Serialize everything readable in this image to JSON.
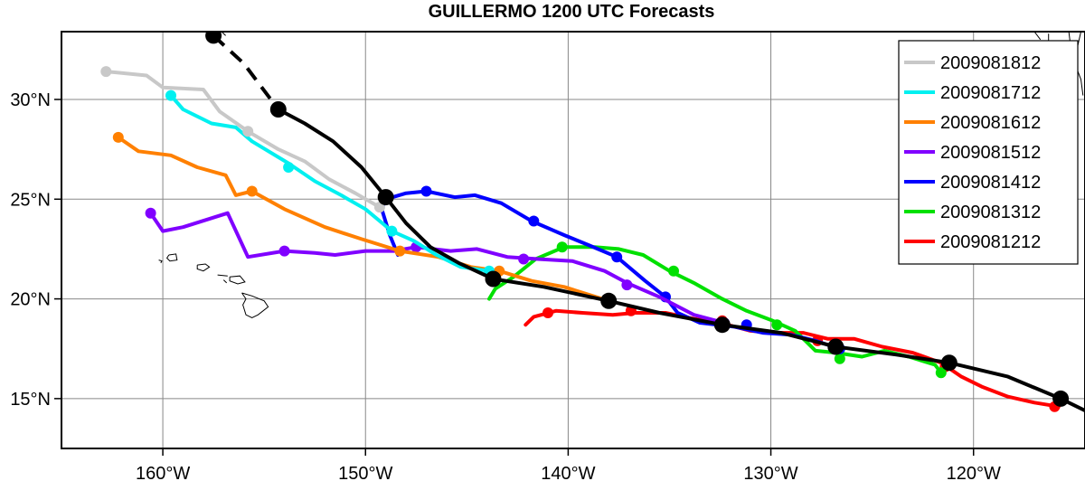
{
  "chart_data": {
    "type": "line",
    "title": "GUILLERMO 1200 UTC Forecasts",
    "x_ticks": [
      {
        "value": -160,
        "label": "160°W"
      },
      {
        "value": -150,
        "label": "150°W"
      },
      {
        "value": -140,
        "label": "140°W"
      },
      {
        "value": -130,
        "label": "130°W"
      },
      {
        "value": -120,
        "label": "120°W"
      }
    ],
    "y_ticks": [
      {
        "value": 15,
        "label": "15°N"
      },
      {
        "value": 20,
        "label": "20°N"
      },
      {
        "value": 25,
        "label": "25°N"
      },
      {
        "value": 30,
        "label": "30°N"
      }
    ],
    "xlim": [
      -165,
      -114.5
    ],
    "ylim": [
      12.5,
      33.4
    ],
    "grid": true,
    "legend_position": "top-right",
    "best_track": {
      "color": "#000000",
      "dashed_points": [
        [
          -157.5,
          33.2
        ],
        [
          -156.0,
          31.8
        ],
        [
          -154.3,
          29.5
        ]
      ],
      "points": [
        [
          -154.3,
          29.5
        ],
        [
          -153.0,
          28.8
        ],
        [
          -151.6,
          27.9
        ],
        [
          -150.2,
          26.6
        ],
        [
          -149.0,
          25.1
        ],
        [
          -148.0,
          23.8
        ],
        [
          -146.8,
          22.6
        ],
        [
          -145.4,
          21.8
        ],
        [
          -143.7,
          21.0
        ],
        [
          -141.2,
          20.6
        ],
        [
          -138.0,
          19.9
        ],
        [
          -135.5,
          19.3
        ],
        [
          -132.4,
          18.7
        ],
        [
          -129.5,
          18.3
        ],
        [
          -126.8,
          17.6
        ],
        [
          -123.8,
          17.2
        ],
        [
          -121.2,
          16.8
        ],
        [
          -118.3,
          16.1
        ],
        [
          -115.7,
          15.0
        ],
        [
          -114.5,
          14.4
        ]
      ],
      "markers": [
        [
          -157.5,
          33.2
        ],
        [
          -154.3,
          29.5
        ],
        [
          -149.0,
          25.1
        ],
        [
          -143.7,
          21.0
        ],
        [
          -138.0,
          19.9
        ],
        [
          -132.4,
          18.7
        ],
        [
          -126.8,
          17.6
        ],
        [
          -121.2,
          16.8
        ],
        [
          -115.7,
          15.0
        ]
      ]
    },
    "series": [
      {
        "name": "2009081812",
        "color": "#c8c8c8",
        "points": [
          [
            -162.8,
            31.4
          ],
          [
            -160.8,
            31.2
          ],
          [
            -160.0,
            30.6
          ],
          [
            -158.0,
            30.5
          ],
          [
            -157.2,
            29.4
          ],
          [
            -155.8,
            28.4
          ],
          [
            -154.3,
            27.5
          ],
          [
            -153.0,
            26.9
          ],
          [
            -151.8,
            26.0
          ],
          [
            -150.5,
            25.3
          ],
          [
            -149.3,
            24.6
          ]
        ],
        "markers": [
          [
            -162.8,
            31.4
          ],
          [
            -155.8,
            28.4
          ],
          [
            -149.3,
            24.6
          ]
        ]
      },
      {
        "name": "2009081712",
        "color": "#00f0f0",
        "points": [
          [
            -159.6,
            30.2
          ],
          [
            -159.0,
            29.5
          ],
          [
            -157.6,
            28.8
          ],
          [
            -156.4,
            28.6
          ],
          [
            -155.6,
            27.9
          ],
          [
            -153.8,
            26.8
          ],
          [
            -152.5,
            25.9
          ],
          [
            -151.2,
            25.2
          ],
          [
            -150.0,
            24.5
          ],
          [
            -148.7,
            23.4
          ],
          [
            -147.6,
            22.9
          ],
          [
            -146.5,
            22.2
          ],
          [
            -145.3,
            21.6
          ],
          [
            -143.9,
            21.4
          ]
        ],
        "markers": [
          [
            -159.6,
            30.2
          ],
          [
            -153.8,
            26.6
          ],
          [
            -148.7,
            23.4
          ],
          [
            -143.9,
            21.4
          ]
        ]
      },
      {
        "name": "2009081612",
        "color": "#ff8000",
        "points": [
          [
            -162.2,
            28.1
          ],
          [
            -161.2,
            27.4
          ],
          [
            -159.6,
            27.2
          ],
          [
            -158.3,
            26.6
          ],
          [
            -156.9,
            26.2
          ],
          [
            -156.4,
            25.2
          ],
          [
            -155.6,
            25.4
          ],
          [
            -154.0,
            24.5
          ],
          [
            -152.0,
            23.6
          ],
          [
            -150.2,
            23.0
          ],
          [
            -148.3,
            22.4
          ],
          [
            -146.4,
            22.1
          ],
          [
            -144.8,
            21.6
          ],
          [
            -143.4,
            21.4
          ],
          [
            -141.8,
            20.9
          ],
          [
            -140.2,
            20.6
          ],
          [
            -138.0,
            19.9
          ]
        ],
        "markers": [
          [
            -162.2,
            28.1
          ],
          [
            -155.6,
            25.4
          ],
          [
            -148.3,
            22.4
          ],
          [
            -143.4,
            21.4
          ],
          [
            -138.0,
            19.9
          ]
        ]
      },
      {
        "name": "2009081512",
        "color": "#8000ff",
        "points": [
          [
            -160.6,
            24.3
          ],
          [
            -160.0,
            23.4
          ],
          [
            -159.0,
            23.6
          ],
          [
            -156.8,
            24.3
          ],
          [
            -155.8,
            22.1
          ],
          [
            -154.0,
            22.4
          ],
          [
            -152.5,
            22.3
          ],
          [
            -151.5,
            22.2
          ],
          [
            -150.0,
            22.4
          ],
          [
            -148.6,
            22.4
          ],
          [
            -147.5,
            22.6
          ],
          [
            -145.8,
            22.4
          ],
          [
            -144.5,
            22.5
          ],
          [
            -143.0,
            22.1
          ],
          [
            -141.5,
            22.0
          ],
          [
            -139.8,
            21.9
          ],
          [
            -138.2,
            21.4
          ],
          [
            -137.1,
            20.8
          ],
          [
            -135.5,
            20.1
          ],
          [
            -133.8,
            19.2
          ],
          [
            -132.3,
            18.8
          ]
        ],
        "markers": [
          [
            -160.6,
            24.3
          ],
          [
            -154.0,
            22.4
          ],
          [
            -147.5,
            22.6
          ],
          [
            -142.2,
            22.0
          ],
          [
            -137.1,
            20.7
          ],
          [
            -132.3,
            18.8
          ]
        ]
      },
      {
        "name": "2009081412",
        "color": "#0000ff",
        "points": [
          [
            -148.4,
            22.2
          ],
          [
            -148.8,
            23.2
          ],
          [
            -149.2,
            24.5
          ],
          [
            -149.0,
            25.0
          ],
          [
            -148.0,
            25.3
          ],
          [
            -147.0,
            25.4
          ],
          [
            -145.6,
            25.1
          ],
          [
            -144.6,
            25.2
          ],
          [
            -143.3,
            24.8
          ],
          [
            -141.8,
            23.9
          ],
          [
            -140.2,
            23.2
          ],
          [
            -139.0,
            22.7
          ],
          [
            -137.6,
            22.1
          ],
          [
            -136.2,
            20.9
          ],
          [
            -135.2,
            20.1
          ],
          [
            -134.6,
            19.3
          ],
          [
            -133.5,
            18.8
          ],
          [
            -131.8,
            18.6
          ],
          [
            -130.4,
            18.3
          ],
          [
            -129.0,
            18.2
          ],
          [
            -127.8,
            17.9
          ],
          [
            -126.6,
            17.5
          ]
        ],
        "markers": [
          [
            -147.0,
            25.4
          ],
          [
            -141.7,
            23.9
          ],
          [
            -137.6,
            22.1
          ],
          [
            -135.2,
            20.1
          ],
          [
            -131.2,
            18.7
          ],
          [
            -126.6,
            17.5
          ]
        ]
      },
      {
        "name": "2009081312",
        "color": "#00e000",
        "points": [
          [
            -143.9,
            20.0
          ],
          [
            -143.6,
            20.5
          ],
          [
            -142.7,
            21.1
          ],
          [
            -141.6,
            22.0
          ],
          [
            -140.2,
            22.6
          ],
          [
            -138.7,
            22.6
          ],
          [
            -137.5,
            22.5
          ],
          [
            -136.3,
            22.2
          ],
          [
            -135.0,
            21.4
          ],
          [
            -133.8,
            20.8
          ],
          [
            -132.4,
            20.0
          ],
          [
            -131.2,
            19.4
          ],
          [
            -129.9,
            18.9
          ],
          [
            -128.8,
            18.4
          ],
          [
            -127.8,
            17.4
          ],
          [
            -126.8,
            17.3
          ],
          [
            -125.5,
            17.1
          ],
          [
            -124.4,
            17.4
          ],
          [
            -123.2,
            17.1
          ],
          [
            -121.9,
            16.7
          ],
          [
            -121.6,
            16.3
          ]
        ],
        "markers": [
          [
            -140.3,
            22.6
          ],
          [
            -134.8,
            21.4
          ],
          [
            -129.7,
            18.7
          ],
          [
            -126.6,
            17.0
          ],
          [
            -121.6,
            16.3
          ]
        ]
      },
      {
        "name": "2009081212",
        "color": "#ff0000",
        "points": [
          [
            -142.1,
            18.7
          ],
          [
            -141.7,
            19.1
          ],
          [
            -140.6,
            19.4
          ],
          [
            -139.3,
            19.3
          ],
          [
            -137.8,
            19.2
          ],
          [
            -136.7,
            19.3
          ],
          [
            -135.2,
            19.3
          ],
          [
            -133.8,
            19.0
          ],
          [
            -132.5,
            18.8
          ],
          [
            -131.0,
            18.4
          ],
          [
            -129.8,
            18.3
          ],
          [
            -128.4,
            18.3
          ],
          [
            -127.2,
            18.0
          ],
          [
            -125.9,
            18.0
          ],
          [
            -124.5,
            17.6
          ],
          [
            -123.0,
            17.3
          ],
          [
            -121.6,
            16.8
          ],
          [
            -120.6,
            16.1
          ],
          [
            -119.6,
            15.6
          ],
          [
            -118.3,
            15.1
          ],
          [
            -117.0,
            14.8
          ],
          [
            -115.8,
            14.6
          ]
        ],
        "markers": [
          [
            -141.0,
            19.3
          ],
          [
            -136.9,
            19.4
          ],
          [
            -132.4,
            18.9
          ],
          [
            -127.7,
            17.9
          ],
          [
            -121.4,
            16.6
          ],
          [
            -116.0,
            14.6
          ]
        ]
      }
    ],
    "coastlines": [
      [
        [
          -158.3,
          21.7
        ],
        [
          -157.9,
          21.75
        ],
        [
          -157.7,
          21.6
        ],
        [
          -158.0,
          21.4
        ],
        [
          -158.3,
          21.5
        ],
        [
          -158.3,
          21.7
        ]
      ],
      [
        [
          -156.7,
          21.1
        ],
        [
          -156.2,
          21.15
        ],
        [
          -155.95,
          20.85
        ],
        [
          -156.3,
          20.75
        ],
        [
          -156.7,
          20.9
        ],
        [
          -156.7,
          21.1
        ]
      ],
      [
        [
          -156.1,
          20.3
        ],
        [
          -155.6,
          20.15
        ],
        [
          -155.0,
          19.9
        ],
        [
          -154.8,
          19.6
        ],
        [
          -155.3,
          19.2
        ],
        [
          -155.6,
          19.05
        ],
        [
          -155.9,
          19.2
        ],
        [
          -156.05,
          19.7
        ],
        [
          -155.9,
          20.0
        ],
        [
          -156.1,
          20.3
        ]
      ],
      [
        [
          -159.7,
          22.2
        ],
        [
          -159.35,
          22.25
        ],
        [
          -159.3,
          21.95
        ],
        [
          -159.65,
          21.9
        ],
        [
          -159.8,
          22.05
        ],
        [
          -159.7,
          22.2
        ]
      ],
      [
        [
          -160.2,
          21.95
        ],
        [
          -160.05,
          21.9
        ],
        [
          -160.1,
          21.8
        ]
      ],
      [
        [
          -157.3,
          21.2
        ],
        [
          -156.8,
          21.15
        ]
      ],
      [
        [
          -157.0,
          20.95
        ],
        [
          -156.85,
          20.8
        ]
      ],
      [
        [
          -157.1,
          33.4
        ],
        [
          -156.9,
          33.2
        ]
      ],
      [
        [
          -117.0,
          33.4
        ],
        [
          -116.7,
          33.0
        ]
      ],
      [
        [
          -116.3,
          33.3
        ],
        [
          -116.3,
          32.8
        ],
        [
          -116.1,
          32.4
        ]
      ],
      [
        [
          -115.3,
          33.4
        ],
        [
          -115.2,
          32.6
        ],
        [
          -115.0,
          32.0
        ],
        [
          -115.3,
          31.4
        ],
        [
          -115.2,
          30.5
        ],
        [
          -114.9,
          29.8
        ],
        [
          -115.2,
          29.0
        ],
        [
          -115.0,
          28.4
        ]
      ],
      [
        [
          -114.7,
          33.4
        ],
        [
          -114.9,
          32.5
        ],
        [
          -115.0,
          31.8
        ],
        [
          -114.7,
          31.0
        ],
        [
          -114.6,
          30.2
        ]
      ]
    ]
  }
}
